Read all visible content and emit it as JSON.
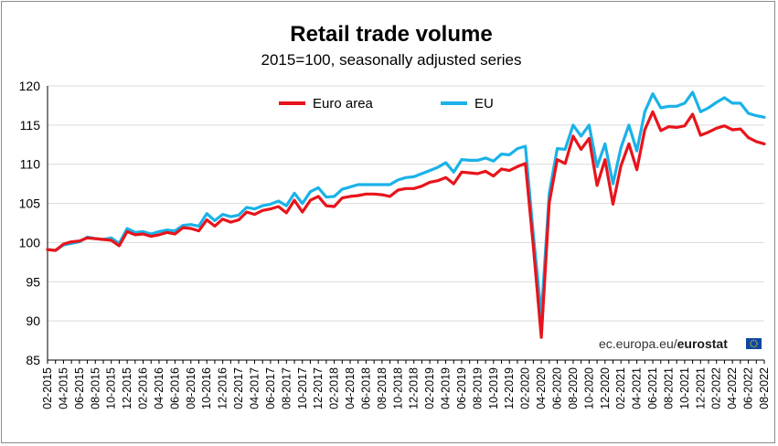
{
  "chart_data": {
    "type": "line",
    "title": "Retail trade volume",
    "subtitle": "2015=100, seasonally adjusted series",
    "xlabel": "",
    "ylabel": "",
    "ylim": [
      85,
      120
    ],
    "yticks": [
      85,
      90,
      95,
      100,
      105,
      110,
      115,
      120
    ],
    "grid": true,
    "legend_position": "top",
    "source": {
      "text": "ec.europa.eu/",
      "brand": "eurostat"
    },
    "x_tick_labels": [
      "02-2015",
      "04-2015",
      "06-2015",
      "08-2015",
      "10-2015",
      "12-2015",
      "02-2016",
      "04-2016",
      "06-2016",
      "08-2016",
      "10-2016",
      "12-2016",
      "02-2017",
      "04-2017",
      "06-2017",
      "08-2017",
      "10-2017",
      "12-2017",
      "02-2018",
      "04-2018",
      "06-2018",
      "08-2018",
      "10-2018",
      "12-2018",
      "02-2019",
      "04-2019",
      "06-2019",
      "08-2019",
      "10-2019",
      "12-2019",
      "02-2020",
      "04-2020",
      "06-2020",
      "08-2020",
      "10-2020",
      "12-2020",
      "02-2021",
      "04-2021",
      "06-2021",
      "08-2021",
      "10-2021",
      "12-2021",
      "02-2022",
      "04-2022",
      "06-2022",
      "08-2022"
    ],
    "series": [
      {
        "name": "Euro area",
        "color": "#e8141b",
        "values": [
          99.1,
          99.0,
          99.8,
          100.1,
          100.2,
          100.6,
          100.5,
          100.4,
          100.3,
          99.6,
          101.4,
          101.0,
          101.1,
          100.8,
          101.0,
          101.3,
          101.1,
          101.9,
          101.8,
          101.5,
          102.9,
          102.1,
          103.0,
          102.6,
          102.9,
          103.9,
          103.6,
          104.1,
          104.3,
          104.6,
          103.8,
          105.4,
          103.9,
          105.4,
          105.9,
          104.7,
          104.6,
          105.7,
          105.9,
          106.0,
          106.2,
          106.2,
          106.1,
          105.9,
          106.7,
          106.9,
          106.9,
          107.2,
          107.7,
          107.9,
          108.3,
          107.5,
          109.0,
          108.9,
          108.8,
          109.1,
          108.5,
          109.4,
          109.2,
          109.7,
          110.1,
          99.5,
          87.9,
          105.1,
          110.6,
          110.1,
          113.6,
          111.9,
          113.3,
          107.3,
          110.6,
          104.9,
          109.8,
          112.6,
          109.3,
          114.4,
          116.7,
          114.3,
          114.8,
          114.7,
          114.9,
          116.4,
          113.7,
          114.1,
          114.6,
          114.9,
          114.4,
          114.5,
          113.4,
          112.9,
          112.6
        ]
      },
      {
        "name": "EU",
        "color": "#1ab2e8",
        "values": [
          99.1,
          99.0,
          99.7,
          99.9,
          100.1,
          100.7,
          100.5,
          100.4,
          100.6,
          99.9,
          101.8,
          101.3,
          101.4,
          101.1,
          101.4,
          101.6,
          101.5,
          102.2,
          102.3,
          102.1,
          103.7,
          102.8,
          103.6,
          103.3,
          103.5,
          104.5,
          104.3,
          104.7,
          104.9,
          105.3,
          104.7,
          106.3,
          105.0,
          106.5,
          107.0,
          105.8,
          105.9,
          106.8,
          107.1,
          107.4,
          107.4,
          107.4,
          107.4,
          107.4,
          108.0,
          108.3,
          108.4,
          108.8,
          109.2,
          109.6,
          110.2,
          109.0,
          110.6,
          110.5,
          110.5,
          110.8,
          110.4,
          111.3,
          111.2,
          112.0,
          112.3,
          101.0,
          90.7,
          106.3,
          112.0,
          111.9,
          115.0,
          113.6,
          115.0,
          109.7,
          112.6,
          107.5,
          112.1,
          115.0,
          111.7,
          116.7,
          119.0,
          117.2,
          117.4,
          117.4,
          117.8,
          119.2,
          116.7,
          117.2,
          117.9,
          118.5,
          117.8,
          117.8,
          116.5,
          116.2,
          116.0
        ]
      }
    ]
  }
}
